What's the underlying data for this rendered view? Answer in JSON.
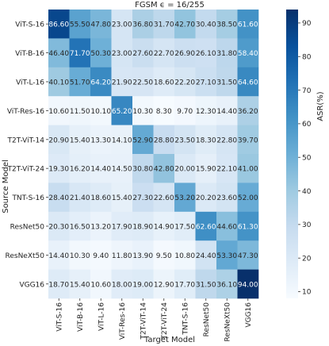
{
  "chart_data": {
    "type": "heatmap",
    "title": "FGSM ϵ = 16/255",
    "xlabel": "Target Model",
    "ylabel": "Source Model",
    "colorbar_label": "ASR(%)",
    "colorbar_ticks": [
      10,
      20,
      30,
      40,
      50,
      60,
      70,
      80,
      90
    ],
    "value_range": [
      8,
      94
    ],
    "colormap": [
      "#f7fbff",
      "#deebf7",
      "#c6dbef",
      "#9ecae1",
      "#6baed6",
      "#4292c6",
      "#2171b5",
      "#08519c",
      "#08306b"
    ],
    "rows": [
      "ViT-S-16",
      "ViT-B-16",
      "ViT-L-16",
      "ViT-Res-16",
      "T2T-ViT-14",
      "T2T-ViT-24",
      "TNT-S-16",
      "ResNet50",
      "ResNeXt50",
      "VGG16"
    ],
    "columns": [
      "ViT-S-16",
      "ViT-B-16",
      "ViT-L-16",
      "ViT-Res-16",
      "T2T-ViT-14",
      "T2T-ViT-24",
      "TNT-S-16",
      "ResNet50",
      "ResNeXt50",
      "VGG16"
    ],
    "values": [
      [
        "86.60",
        "55.50",
        "47.80",
        "23.00",
        "36.80",
        "31.70",
        "42.70",
        "30.40",
        "38.50",
        "61.60"
      ],
      [
        "46.40",
        "71.70",
        "50.30",
        "23.00",
        "27.60",
        "22.70",
        "26.90",
        "26.10",
        "31.80",
        "58.40"
      ],
      [
        "40.10",
        "51.70",
        "64.20",
        "21.90",
        "22.50",
        "18.60",
        "22.20",
        "27.10",
        "31.50",
        "64.60"
      ],
      [
        "10.60",
        "11.50",
        "10.10",
        "65.20",
        "10.30",
        "8.30",
        "9.70",
        "12.30",
        "14.40",
        "36.20"
      ],
      [
        "20.90",
        "15.40",
        "13.30",
        "14.10",
        "52.90",
        "28.80",
        "23.50",
        "18.30",
        "22.80",
        "39.70"
      ],
      [
        "19.30",
        "16.20",
        "14.40",
        "14.50",
        "30.80",
        "42.80",
        "20.00",
        "15.90",
        "22.10",
        "41.00"
      ],
      [
        "28.40",
        "21.40",
        "18.60",
        "15.40",
        "27.30",
        "22.60",
        "53.20",
        "20.20",
        "23.60",
        "52.00"
      ],
      [
        "20.30",
        "16.50",
        "13.20",
        "17.90",
        "18.90",
        "14.90",
        "17.50",
        "62.60",
        "44.60",
        "61.30"
      ],
      [
        "14.40",
        "10.30",
        "9.40",
        "11.80",
        "13.90",
        "9.50",
        "10.80",
        "24.40",
        "53.30",
        "47.30"
      ],
      [
        "18.70",
        "15.40",
        "10.60",
        "18.00",
        "19.00",
        "12.90",
        "17.70",
        "31.50",
        "36.10",
        "94.00"
      ]
    ]
  }
}
